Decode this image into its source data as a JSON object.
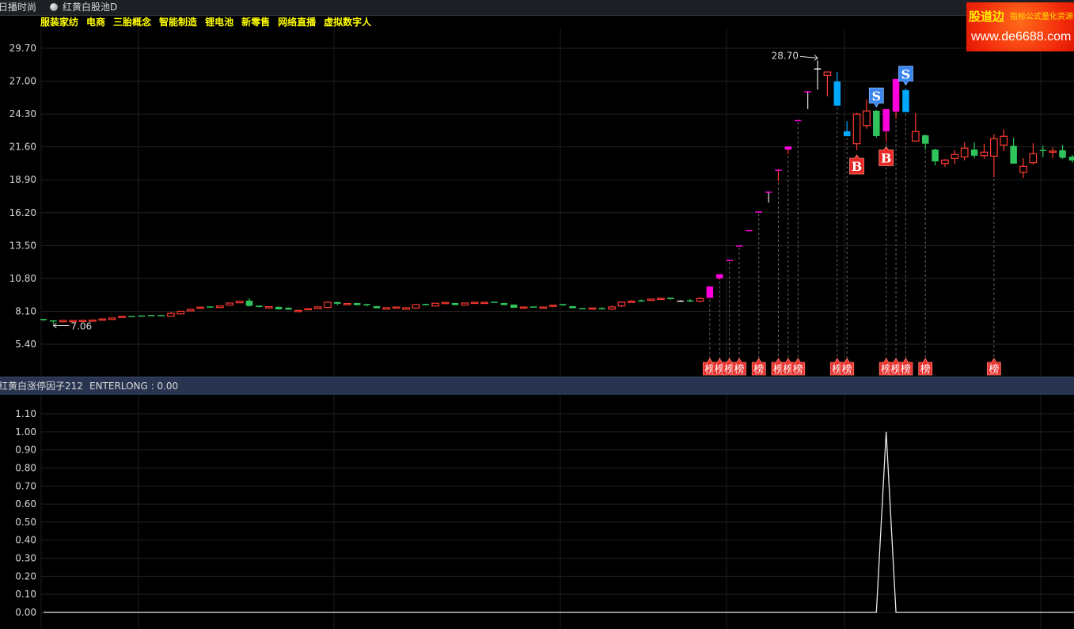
{
  "window": {
    "stock_name": "日播时尚",
    "pool_name": "红黄白股池D",
    "pool_icon": "circle-radio-icon"
  },
  "concepts": [
    "服装家纺",
    "电商",
    "三胎概念",
    "智能制造",
    "锂电池",
    "新零售",
    "网络直播",
    "虚拟数字人"
  ],
  "logo": {
    "brand": "股道边",
    "tagline": "指标公式量化资源",
    "url": "www.de6688.com"
  },
  "indicator_bar": {
    "name": "红黄白涨停因子212",
    "value_label": "ENTERLONG : 0.00"
  },
  "colors": {
    "up": "#ff3b30",
    "down": "#2fc55c",
    "limit_up": "#ff00dd",
    "limit_down": "#00a8ff",
    "flat": "#e6e6e6",
    "marker": "#e8322f",
    "sell_marker": "#3a86f0",
    "yellow_text": "#ffff00"
  },
  "chart_data": [
    {
      "type": "candlestick",
      "ylim": [
        5.4,
        29.7
      ],
      "y_ticks": [
        "29.70",
        "27.00",
        "24.30",
        "21.60",
        "18.90",
        "16.20",
        "13.50",
        "10.80",
        "8.10",
        "5.40"
      ],
      "grid": true,
      "ohlc": [
        [
          7.43,
          7.46,
          7.3,
          7.33
        ],
        [
          7.31,
          7.33,
          7.06,
          7.27
        ],
        [
          7.24,
          7.37,
          7.2,
          7.35
        ],
        [
          7.3,
          7.38,
          7.26,
          7.34
        ],
        [
          7.33,
          7.4,
          7.3,
          7.36
        ],
        [
          7.36,
          7.4,
          7.33,
          7.38
        ],
        [
          7.44,
          7.52,
          7.4,
          7.47
        ],
        [
          7.43,
          7.58,
          7.41,
          7.55
        ],
        [
          7.66,
          7.7,
          7.64,
          7.69
        ],
        [
          7.67,
          7.69,
          7.64,
          7.66
        ],
        [
          7.71,
          7.73,
          7.68,
          7.7
        ],
        [
          7.75,
          7.77,
          7.72,
          7.74
        ],
        [
          7.74,
          7.76,
          7.7,
          7.72
        ],
        [
          7.7,
          8.05,
          7.68,
          7.93
        ],
        [
          7.89,
          8.12,
          7.86,
          8.1
        ],
        [
          8.13,
          8.3,
          8.1,
          8.26
        ],
        [
          8.34,
          8.47,
          8.32,
          8.44
        ],
        [
          8.45,
          8.48,
          8.4,
          8.43
        ],
        [
          8.41,
          8.58,
          8.39,
          8.54
        ],
        [
          8.61,
          8.8,
          8.59,
          8.78
        ],
        [
          8.8,
          8.97,
          8.78,
          8.93
        ],
        [
          8.97,
          9.17,
          8.5,
          8.54
        ],
        [
          8.52,
          8.55,
          8.4,
          8.41
        ],
        [
          8.37,
          8.5,
          8.35,
          8.48
        ],
        [
          8.46,
          8.48,
          8.24,
          8.26
        ],
        [
          8.39,
          8.41,
          8.22,
          8.24
        ],
        [
          8.15,
          8.19,
          8.12,
          8.17
        ],
        [
          8.22,
          8.35,
          8.2,
          8.32
        ],
        [
          8.32,
          8.5,
          8.3,
          8.46
        ],
        [
          8.41,
          8.9,
          8.35,
          8.85
        ],
        [
          8.85,
          8.88,
          8.6,
          8.72
        ],
        [
          8.71,
          8.76,
          8.7,
          8.74
        ],
        [
          8.78,
          8.8,
          8.58,
          8.61
        ],
        [
          8.65,
          8.67,
          8.5,
          8.55
        ],
        [
          8.52,
          8.54,
          8.35,
          8.35
        ],
        [
          8.28,
          8.4,
          8.28,
          8.39
        ],
        [
          8.43,
          8.5,
          8.37,
          8.45
        ],
        [
          8.26,
          8.42,
          8.24,
          8.39
        ],
        [
          8.37,
          8.68,
          8.35,
          8.65
        ],
        [
          8.66,
          8.7,
          8.58,
          8.64
        ],
        [
          8.54,
          8.8,
          8.52,
          8.76
        ],
        [
          8.74,
          8.86,
          8.72,
          8.83
        ],
        [
          8.78,
          8.8,
          8.6,
          8.61
        ],
        [
          8.61,
          8.8,
          8.6,
          8.78
        ],
        [
          8.83,
          8.84,
          8.75,
          8.84
        ],
        [
          8.82,
          8.88,
          8.78,
          8.84
        ],
        [
          8.84,
          8.87,
          8.8,
          8.83
        ],
        [
          8.78,
          8.8,
          8.6,
          8.61
        ],
        [
          8.65,
          8.66,
          8.39,
          8.39
        ],
        [
          8.43,
          8.5,
          8.37,
          8.45
        ],
        [
          8.45,
          8.48,
          8.4,
          8.44
        ],
        [
          8.43,
          8.49,
          8.37,
          8.45
        ],
        [
          8.58,
          8.6,
          8.5,
          8.6
        ],
        [
          8.65,
          8.68,
          8.55,
          8.55
        ],
        [
          8.52,
          8.54,
          8.35,
          8.35
        ],
        [
          8.31,
          8.32,
          8.29,
          8.3
        ],
        [
          8.36,
          8.38,
          8.34,
          8.37
        ],
        [
          8.31,
          8.45,
          8.28,
          8.3
        ],
        [
          8.28,
          8.56,
          8.2,
          8.46
        ],
        [
          8.54,
          8.9,
          8.45,
          8.85
        ],
        [
          8.91,
          9.02,
          8.85,
          8.93
        ],
        [
          8.95,
          9.07,
          8.88,
          8.94
        ],
        [
          8.99,
          9.12,
          8.95,
          9.1
        ],
        [
          9.15,
          9.2,
          9.12,
          9.17
        ],
        [
          9.17,
          9.2,
          9.05,
          9.06
        ],
        [
          8.93,
          9.0,
          8.86,
          8.93
        ],
        [
          8.95,
          9.1,
          8.85,
          8.93
        ],
        [
          8.93,
          9.26,
          8.85,
          9.15
        ],
        [
          9.2,
          10.14,
          9.2,
          10.14
        ],
        [
          10.8,
          11.15,
          10.7,
          11.15
        ],
        [
          12.27,
          12.27,
          12.27,
          12.27
        ],
        [
          13.46,
          13.46,
          13.46,
          13.46
        ],
        [
          14.72,
          14.72,
          14.72,
          14.72
        ],
        [
          16.25,
          16.25,
          16.25,
          16.25
        ],
        [
          17.88,
          17.88,
          17.03,
          17.88
        ],
        [
          19.69,
          19.69,
          18.79,
          19.69
        ],
        [
          21.38,
          21.64,
          20.99,
          21.64
        ],
        [
          23.76,
          23.76,
          23.76,
          23.76
        ],
        [
          26.13,
          26.13,
          24.7,
          26.13
        ],
        [
          28.0,
          28.7,
          26.3,
          28.0
        ],
        [
          27.47,
          27.75,
          25.76,
          27.75
        ],
        [
          26.97,
          27.75,
          24.98,
          24.98
        ],
        [
          22.88,
          23.72,
          22.48,
          22.48
        ],
        [
          21.86,
          24.4,
          21.32,
          24.29
        ],
        [
          23.35,
          25.5,
          23.09,
          24.55
        ],
        [
          24.57,
          24.62,
          22.36,
          22.49
        ],
        [
          22.88,
          24.7,
          22.0,
          24.7
        ],
        [
          24.5,
          27.17,
          23.92,
          27.17
        ],
        [
          26.26,
          26.41,
          24.46,
          24.46
        ],
        [
          22.08,
          24.37,
          22.08,
          22.86
        ],
        [
          22.55,
          22.62,
          21.38,
          21.86
        ],
        [
          21.38,
          21.45,
          20.08,
          20.41
        ],
        [
          20.23,
          20.6,
          19.97,
          20.52
        ],
        [
          20.65,
          21.32,
          20.17,
          20.97
        ],
        [
          20.78,
          21.97,
          20.49,
          21.5
        ],
        [
          21.38,
          21.97,
          20.67,
          20.88
        ],
        [
          20.88,
          21.84,
          20.62,
          21.17
        ],
        [
          20.84,
          22.64,
          19.11,
          22.27
        ],
        [
          21.75,
          23.05,
          21.25,
          22.47
        ],
        [
          21.69,
          22.34,
          20.23,
          20.23
        ],
        [
          19.52,
          20.67,
          19.05,
          20.0
        ],
        [
          20.3,
          21.9,
          20.17,
          21.04
        ],
        [
          21.3,
          21.71,
          20.75,
          21.25
        ],
        [
          21.22,
          21.56,
          20.69,
          21.26
        ],
        [
          21.32,
          21.77,
          20.62,
          20.71
        ],
        [
          20.8,
          20.95,
          20.3,
          20.49
        ]
      ],
      "special_candles": {
        "limit_up": [
          68,
          69,
          70,
          71,
          72,
          73,
          74,
          75,
          76,
          77,
          78,
          86,
          87
        ],
        "limit_down": [
          81,
          82,
          88
        ],
        "flat": [
          65,
          79
        ]
      },
      "annotations": [
        {
          "index": 79,
          "text": "28.70",
          "at": "high"
        },
        {
          "index": 1,
          "text": "7.06",
          "at": "low"
        }
      ],
      "bang_marker_text": "榜",
      "bang_markers": [
        68,
        69,
        70,
        71,
        73,
        75,
        76,
        77,
        81,
        82,
        86,
        87,
        88,
        90,
        97
      ],
      "signals": [
        {
          "index": 83,
          "text": "B",
          "kind": "buy"
        },
        {
          "index": 85,
          "text": "S",
          "kind": "sell"
        },
        {
          "index": 86,
          "text": "B",
          "kind": "buy"
        },
        {
          "index": 88,
          "text": "S",
          "kind": "sell"
        }
      ]
    },
    {
      "type": "line",
      "series": [
        {
          "name": "ENTERLONG",
          "spike_index": 86,
          "spike_value": 1.0,
          "base_value": 0.0
        }
      ],
      "ylim": [
        0.0,
        1.1
      ],
      "y_ticks": [
        "1.10",
        "1.00",
        "0.90",
        "0.80",
        "0.70",
        "0.60",
        "0.50",
        "0.40",
        "0.30",
        "0.20",
        "0.10",
        "0.00"
      ],
      "grid": true
    }
  ]
}
